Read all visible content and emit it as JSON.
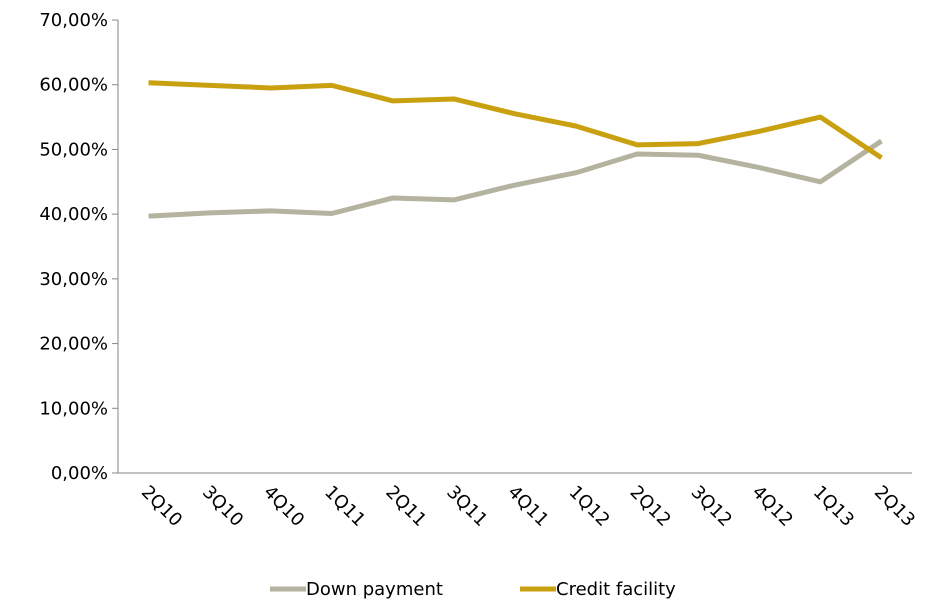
{
  "chart_data": {
    "type": "line",
    "categories": [
      "2Q10",
      "3Q10",
      "4Q10",
      "1Q11",
      "2Q11",
      "3Q11",
      "4Q11",
      "1Q12",
      "2Q12",
      "3Q12",
      "4Q12",
      "1Q13",
      "2Q13"
    ],
    "series": [
      {
        "name": "Down payment",
        "color": "#b3b39f",
        "values": [
          39.7,
          40.2,
          40.5,
          40.1,
          42.5,
          42.2,
          44.5,
          46.4,
          49.3,
          49.1,
          47.2,
          45.0,
          51.3
        ]
      },
      {
        "name": "Credit facility",
        "color": "#c9a00f",
        "values": [
          60.3,
          59.9,
          59.5,
          59.9,
          57.5,
          57.8,
          55.5,
          53.6,
          50.7,
          50.9,
          52.8,
          55.0,
          48.7
        ]
      }
    ],
    "ylim": [
      0,
      70
    ],
    "yticks": [
      {
        "value": 0,
        "label": "0,00%"
      },
      {
        "value": 10,
        "label": "10,00%"
      },
      {
        "value": 20,
        "label": "20,00%"
      },
      {
        "value": 30,
        "label": "30,00%"
      },
      {
        "value": 40,
        "label": "40,00%"
      },
      {
        "value": 50,
        "label": "50,00%"
      },
      {
        "value": 60,
        "label": "60,00%"
      },
      {
        "value": 70,
        "label": "70,00%"
      }
    ],
    "legend": "bottom"
  }
}
